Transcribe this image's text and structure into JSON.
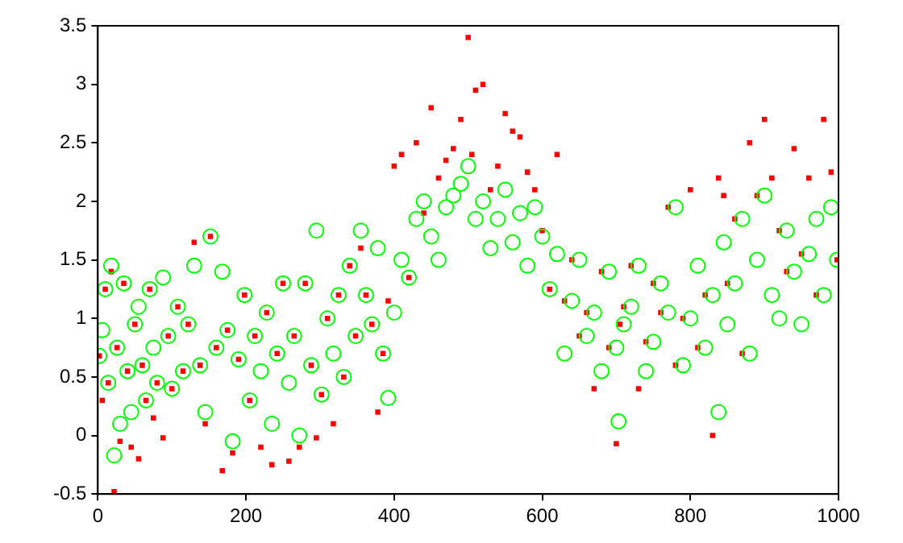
{
  "chart_data": {
    "type": "scatter",
    "xlim": [
      0,
      1000
    ],
    "ylim": [
      -0.5,
      3.5
    ],
    "xticks": [
      0,
      200,
      400,
      600,
      800,
      1000
    ],
    "yticks": [
      -0.5,
      0,
      0.5,
      1,
      1.5,
      2,
      2.5,
      3,
      3.5
    ],
    "grid": false,
    "legend": false,
    "series": [
      {
        "color": "#00ff00",
        "marker": "circle",
        "x": [
          2,
          6,
          10,
          14,
          18,
          22,
          26,
          30,
          35,
          40,
          45,
          50,
          55,
          60,
          65,
          70,
          75,
          80,
          88,
          95,
          100,
          108,
          115,
          122,
          130,
          138,
          145,
          152,
          160,
          168,
          175,
          182,
          190,
          198,
          205,
          212,
          220,
          228,
          235,
          242,
          250,
          258,
          265,
          272,
          280,
          288,
          295,
          302,
          310,
          318,
          325,
          332,
          340,
          348,
          355,
          362,
          370,
          378,
          385,
          392,
          400,
          410,
          420,
          430,
          440,
          450,
          460,
          470,
          480,
          490,
          500,
          510,
          520,
          530,
          540,
          550,
          560,
          570,
          580,
          590,
          600,
          610,
          620,
          630,
          640,
          650,
          660,
          670,
          680,
          690,
          700,
          703,
          710,
          720,
          730,
          740,
          750,
          760,
          770,
          780,
          790,
          800,
          810,
          820,
          830,
          838,
          845,
          850,
          860,
          870,
          880,
          890,
          900,
          910,
          920,
          930,
          940,
          950,
          960,
          970,
          980,
          990,
          998
        ],
        "values": [
          0.68,
          0.9,
          1.25,
          0.45,
          1.45,
          -0.17,
          0.75,
          0.1,
          1.3,
          0.55,
          0.2,
          0.95,
          1.1,
          0.6,
          0.3,
          1.25,
          0.75,
          0.45,
          1.35,
          0.85,
          0.4,
          1.1,
          0.55,
          0.95,
          1.45,
          0.6,
          0.2,
          1.7,
          0.75,
          1.4,
          0.9,
          -0.05,
          0.65,
          1.2,
          0.3,
          0.85,
          0.55,
          1.05,
          0.1,
          0.7,
          1.3,
          0.45,
          0.85,
          0.0,
          1.3,
          0.6,
          1.75,
          0.35,
          1.0,
          0.7,
          1.2,
          0.5,
          1.45,
          0.85,
          1.75,
          1.2,
          0.95,
          1.6,
          0.7,
          0.32,
          1.05,
          1.5,
          1.35,
          1.85,
          2.0,
          1.7,
          1.5,
          1.95,
          2.05,
          2.15,
          2.3,
          1.85,
          2.0,
          1.6,
          1.85,
          2.1,
          1.65,
          1.9,
          1.45,
          1.95,
          1.7,
          1.25,
          1.55,
          0.7,
          1.15,
          1.5,
          0.85,
          1.05,
          0.55,
          1.4,
          0.75,
          0.12,
          0.95,
          1.1,
          1.45,
          0.55,
          0.8,
          1.3,
          1.05,
          1.95,
          0.6,
          1.0,
          1.45,
          0.75,
          1.2,
          0.2,
          1.65,
          0.95,
          1.3,
          1.85,
          0.7,
          1.5,
          2.05,
          1.2,
          1.0,
          1.75,
          1.4,
          0.95,
          1.55,
          1.85,
          1.2,
          1.95,
          1.5
        ]
      },
      {
        "color": "#ff0000",
        "marker": "square",
        "x": [
          2,
          6,
          10,
          14,
          18,
          22,
          26,
          30,
          35,
          40,
          45,
          50,
          55,
          60,
          65,
          70,
          75,
          80,
          88,
          95,
          100,
          108,
          115,
          122,
          130,
          138,
          145,
          152,
          160,
          168,
          175,
          182,
          190,
          198,
          205,
          212,
          220,
          228,
          235,
          242,
          250,
          258,
          265,
          272,
          280,
          288,
          295,
          302,
          310,
          318,
          325,
          332,
          340,
          348,
          355,
          362,
          370,
          378,
          385,
          392,
          400,
          410,
          420,
          430,
          440,
          450,
          460,
          470,
          480,
          490,
          500,
          505,
          510,
          520,
          530,
          540,
          550,
          560,
          570,
          580,
          590,
          600,
          610,
          620,
          630,
          640,
          650,
          660,
          670,
          680,
          690,
          700,
          705,
          710,
          720,
          730,
          740,
          750,
          760,
          770,
          780,
          790,
          800,
          810,
          820,
          830,
          838,
          845,
          850,
          860,
          870,
          880,
          890,
          900,
          910,
          920,
          930,
          940,
          950,
          960,
          970,
          980,
          990,
          998
        ],
        "values": [
          0.68,
          0.3,
          1.25,
          0.45,
          1.4,
          -0.48,
          0.75,
          -0.05,
          1.3,
          0.55,
          -0.1,
          0.95,
          -0.2,
          0.6,
          0.3,
          1.25,
          0.15,
          0.45,
          -0.02,
          0.85,
          0.4,
          1.1,
          0.55,
          0.95,
          1.65,
          0.6,
          0.1,
          1.7,
          0.75,
          -0.3,
          0.9,
          -0.15,
          0.65,
          1.2,
          0.3,
          0.85,
          -0.1,
          1.05,
          -0.25,
          0.7,
          1.3,
          -0.22,
          0.85,
          -0.1,
          1.3,
          0.6,
          -0.02,
          0.35,
          1.0,
          0.1,
          1.2,
          0.5,
          1.45,
          0.85,
          1.6,
          1.2,
          0.95,
          0.2,
          0.7,
          1.15,
          2.3,
          2.4,
          1.35,
          2.5,
          1.9,
          2.8,
          2.2,
          2.35,
          2.45,
          2.7,
          3.4,
          2.4,
          2.95,
          3.0,
          2.1,
          2.3,
          2.75,
          2.6,
          2.55,
          2.25,
          2.1,
          1.75,
          1.25,
          2.4,
          1.15,
          1.5,
          0.85,
          1.05,
          0.4,
          1.4,
          0.75,
          -0.07,
          0.95,
          1.1,
          1.45,
          0.4,
          0.8,
          1.3,
          1.05,
          1.95,
          0.6,
          1.0,
          2.1,
          0.75,
          1.2,
          0.0,
          2.2,
          2.05,
          1.3,
          1.85,
          0.7,
          2.5,
          2.05,
          2.7,
          2.2,
          1.75,
          1.4,
          2.45,
          1.55,
          2.2,
          1.2,
          2.7,
          2.25,
          1.5
        ]
      }
    ]
  }
}
